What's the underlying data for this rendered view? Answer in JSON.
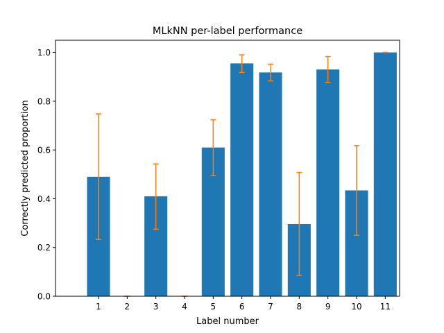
{
  "chart_data": {
    "type": "bar",
    "title": "MLkNN per-label performance",
    "xlabel": "Label number",
    "ylabel": "Correctly predicted proportion",
    "categories": [
      "1",
      "2",
      "3",
      "4",
      "5",
      "6",
      "7",
      "8",
      "9",
      "10",
      "11"
    ],
    "values": [
      0.49,
      0.0,
      0.41,
      0.0,
      0.61,
      0.955,
      0.918,
      0.296,
      0.93,
      0.434,
      1.0
    ],
    "error_low": [
      0.233,
      0.0,
      0.275,
      0.0,
      0.495,
      0.918,
      0.883,
      0.085,
      0.877,
      0.25,
      1.0
    ],
    "error_high": [
      0.748,
      0.0,
      0.543,
      0.0,
      0.724,
      0.99,
      0.952,
      0.508,
      0.983,
      0.618,
      1.0
    ],
    "ylim": [
      0.0,
      1.05
    ],
    "yticks": [
      "0.0",
      "0.2",
      "0.4",
      "0.6",
      "0.8",
      "1.0"
    ],
    "grid": false,
    "colors": {
      "bar": "#1f77b4",
      "errorbar": "#ff7f0e"
    }
  }
}
